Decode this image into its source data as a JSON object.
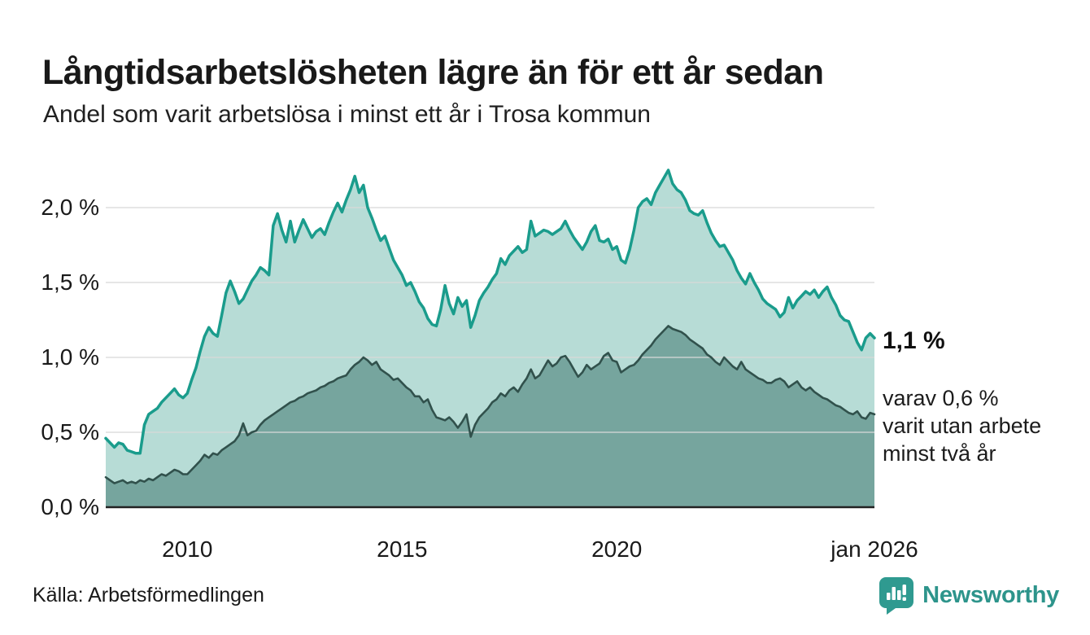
{
  "header": {
    "title": "Långtidsarbetslösheten lägre än för ett år sedan",
    "subtitle": "Andel som varit arbetslösa i minst ett år i Trosa kommun"
  },
  "annotations": {
    "latest_total": "1,1 %",
    "latest_detail": "varav 0,6 %\nvarit utan arbete\nminst två år"
  },
  "footer": {
    "source": "Källa: Arbetsförmedlingen",
    "brand": "Newsworthy",
    "brand_icon": "bar-chart-speech-bubble-icon"
  },
  "colors": {
    "series_one_year_line": "#1a9c8c",
    "series_one_year_fill": "#b7dcd6",
    "series_two_years_line": "#31514c",
    "series_two_years_fill": "#76a59e",
    "gridline": "#d8d8d8",
    "axis": "#222222",
    "text": "#191919",
    "brand": "#2d948b"
  },
  "chart_data": {
    "type": "area",
    "title": "Långtidsarbetslösheten lägre än för ett år sedan",
    "subtitle": "Andel som varit arbetslösa i minst ett år i Trosa kommun",
    "xlabel": "",
    "ylabel": "",
    "unit": "%",
    "grid": "horizontal",
    "legend_position": "none",
    "ylim": [
      0,
      2.25
    ],
    "x_start": 2008.1,
    "x_step": 0.1,
    "xlim": [
      2008.1,
      2026.0
    ],
    "yticks": [
      {
        "value": 0.0,
        "label": "0,0 %"
      },
      {
        "value": 0.5,
        "label": "0,5 %"
      },
      {
        "value": 1.0,
        "label": "1,0 %"
      },
      {
        "value": 1.5,
        "label": "1,5 %"
      },
      {
        "value": 2.0,
        "label": "2,0 %"
      }
    ],
    "xticks": [
      {
        "value": 2010,
        "label": "2010"
      },
      {
        "value": 2015,
        "label": "2015"
      },
      {
        "value": 2020,
        "label": "2020"
      },
      {
        "value": 2026,
        "label": "jan 2026"
      }
    ],
    "series": [
      {
        "name": "arbetslösa minst ett år",
        "latest_value": 1.1,
        "latest_label": "1,1 %",
        "values": [
          0.46,
          0.43,
          0.4,
          0.43,
          0.42,
          0.38,
          0.37,
          0.36,
          0.36,
          0.55,
          0.62,
          0.64,
          0.66,
          0.7,
          0.73,
          0.76,
          0.79,
          0.75,
          0.73,
          0.76,
          0.85,
          0.93,
          1.04,
          1.14,
          1.2,
          1.16,
          1.14,
          1.28,
          1.43,
          1.51,
          1.44,
          1.36,
          1.39,
          1.45,
          1.51,
          1.55,
          1.6,
          1.58,
          1.55,
          1.88,
          1.96,
          1.85,
          1.77,
          1.91,
          1.77,
          1.85,
          1.92,
          1.86,
          1.8,
          1.84,
          1.86,
          1.82,
          1.9,
          1.97,
          2.03,
          1.97,
          2.05,
          2.12,
          2.21,
          2.1,
          2.15,
          2.0,
          1.93,
          1.85,
          1.78,
          1.81,
          1.73,
          1.65,
          1.6,
          1.55,
          1.48,
          1.5,
          1.44,
          1.37,
          1.33,
          1.26,
          1.22,
          1.21,
          1.32,
          1.48,
          1.36,
          1.29,
          1.4,
          1.34,
          1.38,
          1.2,
          1.28,
          1.38,
          1.43,
          1.47,
          1.52,
          1.56,
          1.66,
          1.62,
          1.68,
          1.71,
          1.74,
          1.7,
          1.72,
          1.91,
          1.81,
          1.83,
          1.85,
          1.84,
          1.82,
          1.84,
          1.86,
          1.91,
          1.85,
          1.8,
          1.76,
          1.72,
          1.77,
          1.84,
          1.88,
          1.78,
          1.77,
          1.79,
          1.72,
          1.74,
          1.65,
          1.63,
          1.72,
          1.85,
          2.0,
          2.04,
          2.06,
          2.02,
          2.1,
          2.15,
          2.2,
          2.25,
          2.16,
          2.12,
          2.1,
          2.05,
          1.98,
          1.96,
          1.95,
          1.98,
          1.9,
          1.83,
          1.78,
          1.74,
          1.75,
          1.7,
          1.65,
          1.58,
          1.53,
          1.49,
          1.56,
          1.5,
          1.45,
          1.39,
          1.36,
          1.34,
          1.32,
          1.27,
          1.3,
          1.4,
          1.33,
          1.38,
          1.41,
          1.44,
          1.42,
          1.45,
          1.4,
          1.44,
          1.47,
          1.4,
          1.35,
          1.28,
          1.25,
          1.24,
          1.17,
          1.1,
          1.05,
          1.13,
          1.16,
          1.13
        ]
      },
      {
        "name": "utan arbete minst två år",
        "latest_value": 0.6,
        "latest_label": "0,6 %",
        "values": [
          0.2,
          0.18,
          0.16,
          0.17,
          0.18,
          0.16,
          0.17,
          0.16,
          0.18,
          0.17,
          0.19,
          0.18,
          0.2,
          0.22,
          0.21,
          0.23,
          0.25,
          0.24,
          0.22,
          0.22,
          0.25,
          0.28,
          0.31,
          0.35,
          0.33,
          0.36,
          0.35,
          0.38,
          0.4,
          0.42,
          0.44,
          0.48,
          0.56,
          0.48,
          0.5,
          0.51,
          0.55,
          0.58,
          0.6,
          0.62,
          0.64,
          0.66,
          0.68,
          0.7,
          0.71,
          0.73,
          0.74,
          0.76,
          0.77,
          0.78,
          0.8,
          0.81,
          0.83,
          0.84,
          0.86,
          0.87,
          0.88,
          0.92,
          0.95,
          0.97,
          1.0,
          0.98,
          0.95,
          0.97,
          0.92,
          0.9,
          0.88,
          0.85,
          0.86,
          0.83,
          0.8,
          0.78,
          0.74,
          0.74,
          0.7,
          0.72,
          0.65,
          0.6,
          0.59,
          0.58,
          0.6,
          0.57,
          0.53,
          0.57,
          0.62,
          0.47,
          0.55,
          0.6,
          0.63,
          0.66,
          0.7,
          0.72,
          0.76,
          0.74,
          0.78,
          0.8,
          0.77,
          0.82,
          0.86,
          0.92,
          0.86,
          0.88,
          0.93,
          0.98,
          0.94,
          0.96,
          1.0,
          1.01,
          0.97,
          0.92,
          0.87,
          0.9,
          0.95,
          0.92,
          0.94,
          0.96,
          1.01,
          1.03,
          0.98,
          0.97,
          0.9,
          0.92,
          0.94,
          0.95,
          0.98,
          1.02,
          1.05,
          1.08,
          1.12,
          1.15,
          1.18,
          1.21,
          1.19,
          1.18,
          1.17,
          1.15,
          1.12,
          1.1,
          1.08,
          1.06,
          1.02,
          1.0,
          0.97,
          0.95,
          1.0,
          0.97,
          0.94,
          0.92,
          0.97,
          0.92,
          0.9,
          0.88,
          0.86,
          0.85,
          0.83,
          0.83,
          0.85,
          0.86,
          0.84,
          0.8,
          0.82,
          0.84,
          0.8,
          0.78,
          0.8,
          0.77,
          0.75,
          0.73,
          0.72,
          0.7,
          0.68,
          0.67,
          0.65,
          0.63,
          0.62,
          0.64,
          0.6,
          0.59,
          0.63,
          0.62
        ]
      }
    ]
  }
}
